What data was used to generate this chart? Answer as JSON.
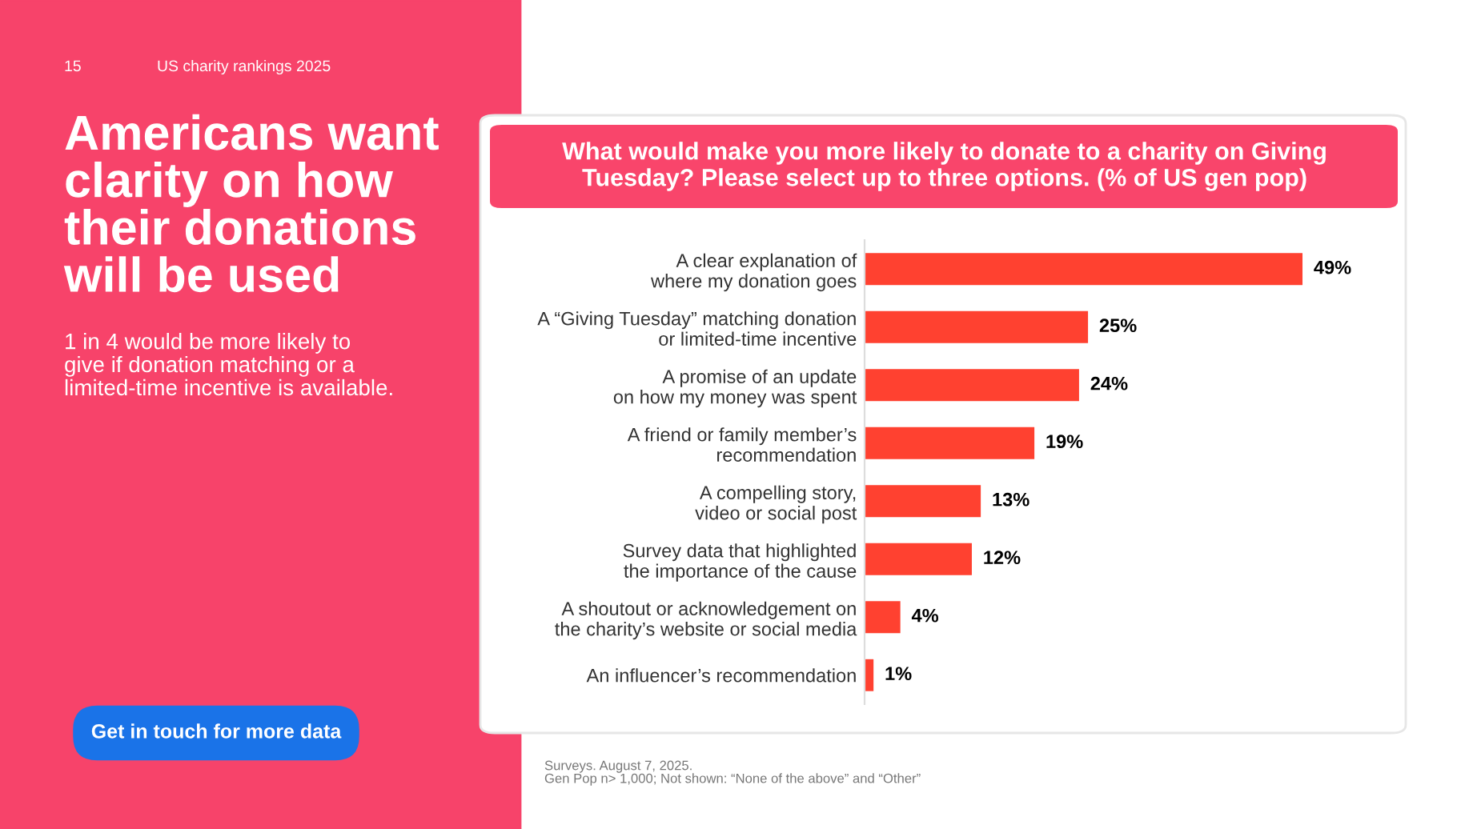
{
  "chart_data": {
    "type": "bar",
    "orientation": "horizontal",
    "title": "What would make you more likely to donate to a charity on Giving\nTuesday? Please select up to three options. (% of US gen pop)",
    "subtitle": "1 in 4 would be more likely to\ngive if donation matching or a\nlimited-time incentive is available.",
    "categories": [
      "A clear explanation of\nwhere my donation goes",
      "A “Giving Tuesday” matching donation\nor limited-time incentive",
      "A promise of an update\non how my money was spent",
      "A friend or family member’s\nrecommendation",
      "A compelling story,\nvideo or social post",
      "Survey data that highlighted\nthe importance of the cause",
      "A shoutout or acknowledgement on\nthe charity’s website or social media",
      "An influencer’s recommendation"
    ],
    "values": [
      49,
      25,
      24,
      19,
      13,
      12,
      4,
      1
    ],
    "value_labels": [
      "49%",
      "25%",
      "24%",
      "19%",
      "13%",
      "12%",
      "4%",
      "1%"
    ],
    "color": "#ff4130",
    "tick_labels": "y",
    "grid": false,
    "legend": false,
    "annotations": [
      "15",
      "US charity rankings 2025",
      "Americans want\nclarity on how\ntheir donations\nwill be used",
      "Get in touch for more data",
      "Surveys. August 7, 2025.\nGen Pop n> 1,000; Not shown: “None of the above” and “Other”"
    ]
  }
}
